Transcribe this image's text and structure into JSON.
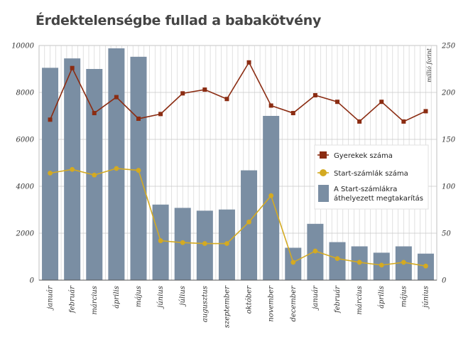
{
  "chart_data": {
    "type": "bar+line",
    "title": "Érdektelenségbe fullad a babakötvény",
    "categories": [
      "január",
      "február",
      "március",
      "április",
      "május",
      "június",
      "július",
      "augusztus",
      "szeptember",
      "október",
      "november",
      "december",
      "január",
      "február",
      "március",
      "április",
      "május",
      "június"
    ],
    "series": [
      {
        "name": "A Start-számlákra áthelyezett megtakarítás",
        "kind": "bar",
        "axis": "left",
        "color": "#7a8ea3",
        "values": [
          9050,
          9450,
          9000,
          9880,
          9520,
          3220,
          3080,
          2960,
          3010,
          4680,
          7000,
          1380,
          2400,
          1620,
          1440,
          1170,
          1440,
          1130
        ]
      },
      {
        "name": "Gyerekek száma",
        "kind": "line",
        "axis": "right",
        "color": "#8b2c12",
        "values": [
          171,
          226,
          178,
          195,
          172,
          177,
          199,
          203,
          193,
          232,
          186,
          178,
          197,
          190,
          169,
          190,
          169,
          180
        ]
      },
      {
        "name": "Start-számlák száma",
        "kind": "line",
        "axis": "right",
        "color": "#d4aa22",
        "values": [
          114,
          118,
          112,
          119,
          117,
          42,
          40,
          39,
          39,
          62,
          90,
          19,
          31,
          23,
          19,
          16,
          19,
          15
        ]
      }
    ],
    "left_axis": {
      "ylim": [
        0,
        10000
      ],
      "ticks": [
        "0",
        "2000",
        "4000",
        "6000",
        "8000",
        "10000"
      ]
    },
    "right_axis": {
      "ylim": [
        0,
        250
      ],
      "ticks": [
        "0",
        "50",
        "100",
        "150",
        "200",
        "250"
      ],
      "label": "millió forint"
    },
    "legend": {
      "placement": "right-middle",
      "items": [
        "Gyerekek száma",
        "Start-számlák száma",
        "A Start-számlákra áthelyezett megtakarítás"
      ]
    },
    "grid": true
  }
}
